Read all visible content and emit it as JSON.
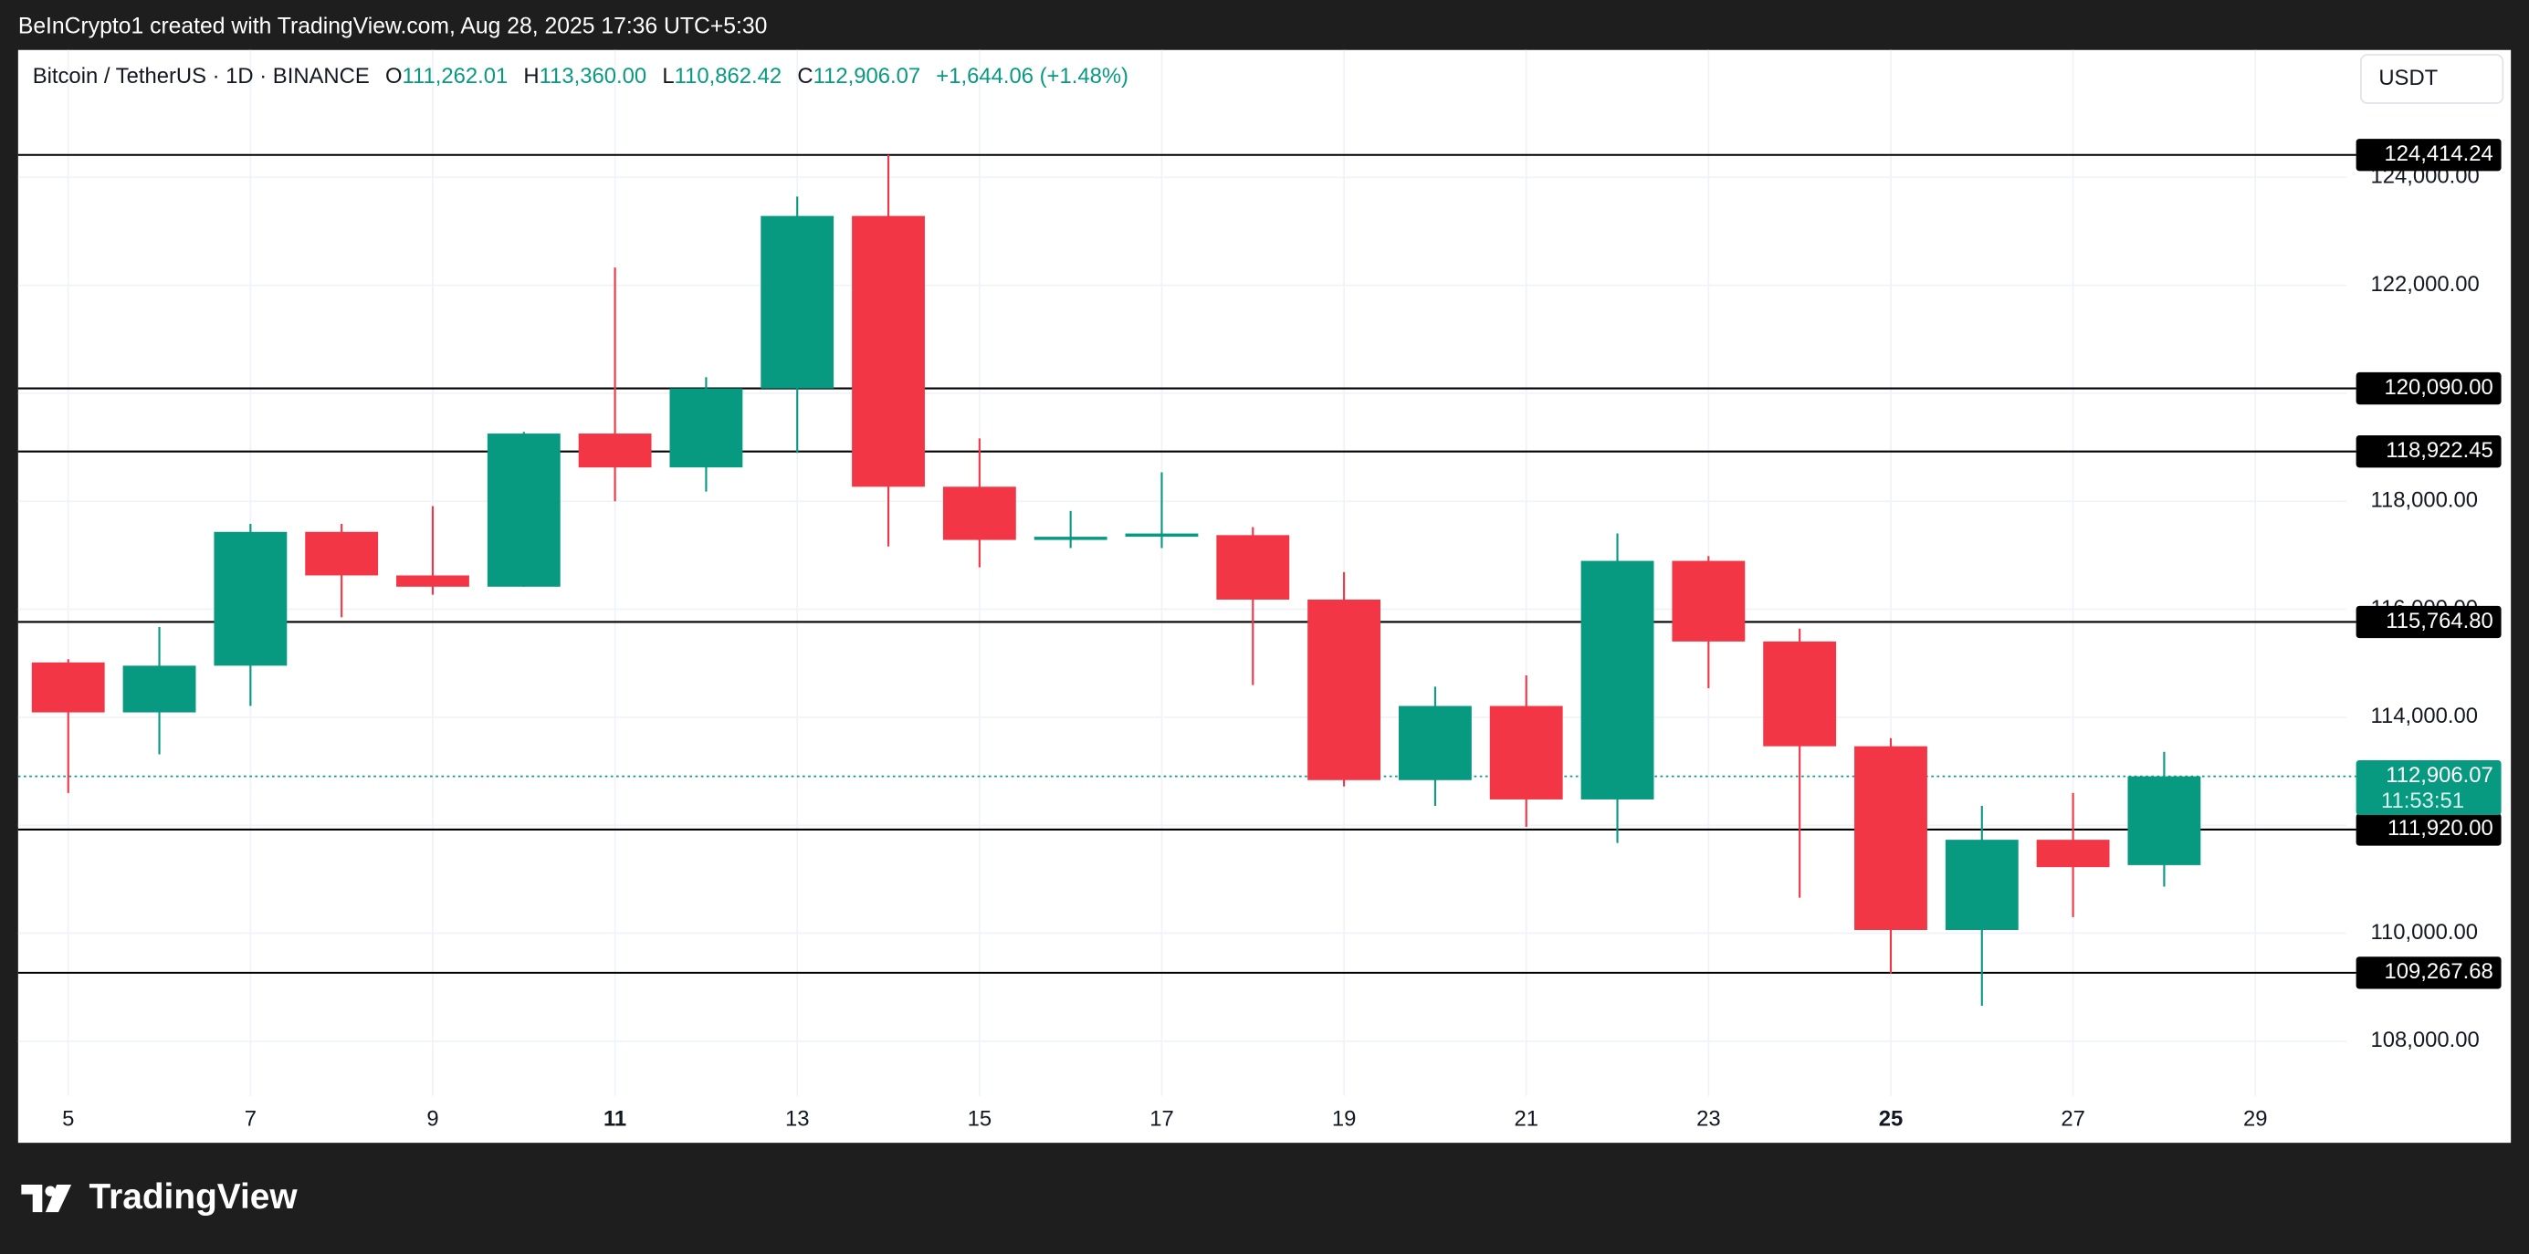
{
  "top_bar": {
    "caption": "BeInCrypto1 created with TradingView.com, Aug 28, 2025 17:36 UTC+5:30"
  },
  "legend": {
    "symbol": "Bitcoin / TetherUS · 1D · BINANCE",
    "open_label": "O",
    "open": "111,262.01",
    "high_label": "H",
    "high": "113,360.00",
    "low_label": "L",
    "low": "110,862.42",
    "close_label": "C",
    "close": "112,906.07",
    "change": "+1,644.06 (+1.48%)"
  },
  "currency": "USDT",
  "footer": {
    "brand": "TradingView"
  },
  "chart_data": {
    "type": "candlestick",
    "x": [
      5,
      6,
      7,
      8,
      9,
      10,
      11,
      12,
      13,
      14,
      15,
      16,
      17,
      18,
      19,
      20,
      21,
      22,
      23,
      24,
      25,
      26,
      27,
      28
    ],
    "open": [
      115015,
      114090,
      114955,
      117433,
      116627,
      116418,
      119254,
      118627,
      120090,
      123284,
      118269,
      117284,
      117343,
      117373,
      116179,
      112836,
      114209,
      112478,
      116896,
      115403,
      113463,
      110060,
      111731,
      111262.01
    ],
    "high": [
      115075,
      115672,
      117582,
      117582,
      117911,
      119284,
      122328,
      120299,
      123642,
      124414.24,
      119164,
      117821,
      118537,
      117522,
      116687,
      114567,
      114776,
      117403,
      116985,
      115642,
      113612,
      112358,
      112597,
      113360
    ],
    "low": [
      112597,
      113314,
      114209,
      115851,
      116269,
      116418,
      118000,
      118179,
      118896,
      117164,
      116776,
      117134,
      117134,
      114597,
      112717,
      112358,
      111970,
      111672,
      114537,
      110657,
      109254,
      108657,
      110299,
      110862.42
    ],
    "close": [
      114090,
      114955,
      117433,
      116627,
      116418,
      119254,
      118627,
      120090,
      123284,
      118269,
      117284,
      117343,
      117403,
      116179,
      112836,
      114209,
      112478,
      116896,
      115403,
      113463,
      110060,
      111731,
      111224,
      112906.07
    ],
    "up_color": "#089981",
    "down_color": "#f23645",
    "xlim": [
      4.45,
      30.0
    ],
    "xticks": [
      5,
      7,
      9,
      11,
      13,
      15,
      17,
      19,
      21,
      23,
      25,
      27,
      29
    ],
    "xticks_bold": [
      11,
      25
    ],
    "ylim": [
      106985,
      126358
    ],
    "yticks": [
      {
        "value": 108000,
        "label": "108,000.00"
      },
      {
        "value": 110000,
        "label": "110,000.00"
      },
      {
        "value": 112000,
        "label": "112,000.00"
      },
      {
        "value": 114000,
        "label": "114,000.00"
      },
      {
        "value": 116000,
        "label": "116,000.00"
      },
      {
        "value": 118000,
        "label": "118,000.00"
      },
      {
        "value": 120000,
        "label": "120,000.00"
      },
      {
        "value": 122000,
        "label": "122,000.00"
      },
      {
        "value": 124000,
        "label": "124,000.00"
      }
    ],
    "grid": true,
    "levels": [
      {
        "value": 124414.24,
        "label": "124,414.24"
      },
      {
        "value": 120090,
        "label": "120,090.00"
      },
      {
        "value": 118922.45,
        "label": "118,922.45"
      },
      {
        "value": 115764.8,
        "label": "115,764.80"
      },
      {
        "value": 111920.0,
        "label": "111,920.00"
      },
      {
        "value": 109267.68,
        "label": "109,267.68"
      }
    ],
    "price_line": {
      "value": 112906.07,
      "label": "112,906.07",
      "countdown": "11:53:51",
      "color": "#089981"
    }
  }
}
